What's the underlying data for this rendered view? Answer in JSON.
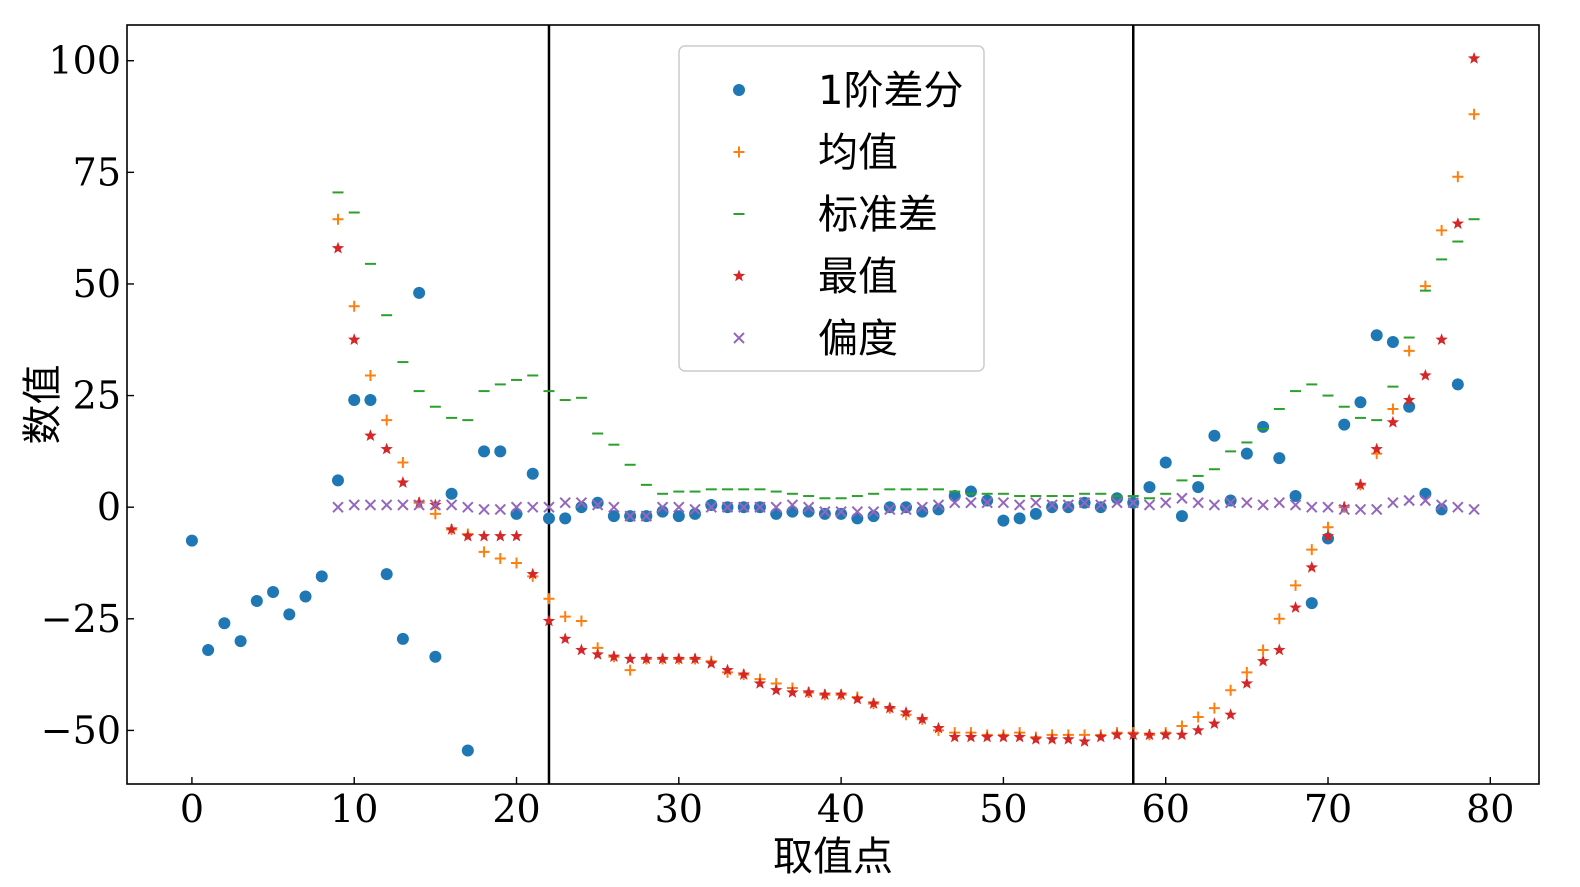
{
  "chart_data": {
    "type": "scatter",
    "xlabel": "取值点",
    "ylabel": "数值",
    "xlim": [
      -4,
      83
    ],
    "ylim": [
      -62,
      108
    ],
    "x_ticks": [
      0,
      10,
      20,
      30,
      40,
      50,
      60,
      70,
      80
    ],
    "y_ticks": [
      -50,
      -25,
      0,
      25,
      50,
      75,
      100
    ],
    "x_tick_labels": [
      "0",
      "10",
      "20",
      "30",
      "40",
      "50",
      "60",
      "70",
      "80"
    ],
    "y_tick_labels": [
      "−50",
      "−25",
      "0",
      "25",
      "50",
      "75",
      "100"
    ],
    "vertical_lines": [
      22,
      58
    ],
    "grid": false,
    "legend_position": "top-center",
    "series": [
      {
        "name": "1阶差分",
        "marker": "circle",
        "color": "#1f77b4",
        "x": [
          0,
          1,
          2,
          3,
          4,
          5,
          6,
          7,
          8,
          9,
          10,
          11,
          12,
          13,
          14,
          15,
          16,
          17,
          18,
          19,
          20,
          21,
          22,
          23,
          24,
          25,
          26,
          27,
          28,
          29,
          30,
          31,
          32,
          33,
          34,
          35,
          36,
          37,
          38,
          39,
          40,
          41,
          42,
          43,
          44,
          45,
          46,
          47,
          48,
          49,
          50,
          51,
          52,
          53,
          54,
          55,
          56,
          57,
          58,
          59,
          60,
          61,
          62,
          63,
          64,
          65,
          66,
          67,
          68,
          69,
          70,
          71,
          72,
          73,
          74,
          75,
          76,
          77,
          78
        ],
        "y": [
          -7.5,
          -32,
          -26,
          -30,
          -21,
          -19,
          -24,
          -20,
          -15.5,
          6,
          24,
          24,
          -15,
          -29.5,
          48,
          -33.5,
          3,
          -54.5,
          12.5,
          12.5,
          -1.5,
          7.5,
          -2.5,
          -2.5,
          0,
          1,
          -2,
          -2,
          -2,
          -1,
          -2,
          -1.5,
          0.5,
          0,
          0,
          0,
          -1.5,
          -1,
          -1,
          -1.5,
          -1.5,
          -2.5,
          -2,
          0,
          0,
          -1,
          -0.5,
          2.5,
          3.5,
          1.5,
          -3,
          -2.5,
          -1.5,
          0,
          0,
          1,
          0,
          2,
          1,
          4.5,
          10,
          -2,
          4.5,
          16,
          1.5,
          12,
          18,
          11,
          2.5,
          -21.5,
          -7,
          18.5,
          23.5,
          38.5,
          37,
          22.5,
          3,
          -0.5,
          27.5
        ]
      },
      {
        "name": "均值",
        "marker": "plus",
        "color": "#ff7f0e",
        "x": [
          9,
          10,
          11,
          12,
          13,
          14,
          15,
          16,
          17,
          18,
          19,
          20,
          21,
          22,
          23,
          24,
          25,
          26,
          27,
          28,
          29,
          30,
          31,
          32,
          33,
          34,
          35,
          36,
          37,
          38,
          39,
          40,
          41,
          42,
          43,
          44,
          45,
          46,
          47,
          48,
          49,
          50,
          51,
          52,
          53,
          54,
          55,
          56,
          57,
          58,
          59,
          60,
          61,
          62,
          63,
          64,
          65,
          66,
          67,
          68,
          69,
          70,
          71,
          72,
          73,
          74,
          75,
          76,
          77,
          78,
          79
        ],
        "y": [
          64.5,
          45,
          29.5,
          19.5,
          10,
          1,
          -1.5,
          -5,
          -6,
          -10,
          -11.5,
          -12.5,
          -15.5,
          -20.5,
          -24.5,
          -25.5,
          -31.5,
          -33.5,
          -36.5,
          -34,
          -34,
          -34,
          -34,
          -34.5,
          -37,
          -37.5,
          -38.5,
          -39.5,
          -40.5,
          -41.5,
          -42,
          -42,
          -42.5,
          -44,
          -45,
          -46.5,
          -47.5,
          -50,
          -50.5,
          -50.5,
          -51,
          -51,
          -50.5,
          -51.5,
          -51,
          -51,
          -51,
          -51,
          -50.5,
          -50.5,
          -51,
          -50.5,
          -49,
          -47,
          -45,
          -41,
          -37,
          -32,
          -25,
          -17.5,
          -9.5,
          -4.5,
          0,
          5,
          12,
          22,
          35,
          49.5,
          62,
          74,
          88
        ]
      },
      {
        "name": "标准差",
        "marker": "hline",
        "color": "#2ca02c",
        "x": [
          9,
          10,
          11,
          12,
          13,
          14,
          15,
          16,
          17,
          18,
          19,
          20,
          21,
          22,
          23,
          24,
          25,
          26,
          27,
          28,
          29,
          30,
          31,
          32,
          33,
          34,
          35,
          36,
          37,
          38,
          39,
          40,
          41,
          42,
          43,
          44,
          45,
          46,
          47,
          48,
          49,
          50,
          51,
          52,
          53,
          54,
          55,
          56,
          57,
          58,
          59,
          60,
          61,
          62,
          63,
          64,
          65,
          66,
          67,
          68,
          69,
          70,
          71,
          72,
          73,
          74,
          75,
          76,
          77,
          78,
          79
        ],
        "y": [
          70.5,
          66,
          54.5,
          43,
          32.5,
          26,
          22.5,
          20,
          19.5,
          26,
          27.5,
          28.5,
          29.5,
          26,
          24,
          24.5,
          16.5,
          14,
          9.5,
          5,
          3,
          3.5,
          3.5,
          4,
          4,
          4,
          4,
          3.5,
          3,
          2.5,
          2,
          2,
          2.5,
          3,
          4,
          4,
          4,
          4,
          3.5,
          3,
          3,
          3,
          2.5,
          2.5,
          2.5,
          2.5,
          3,
          3,
          2.5,
          2.5,
          2,
          3,
          6,
          7,
          8.5,
          12.5,
          14.5,
          17.5,
          22,
          26,
          27.5,
          25,
          22.5,
          20,
          19.5,
          27,
          38,
          48.5,
          55.5,
          59.5,
          64.5
        ]
      },
      {
        "name": "最值",
        "marker": "star",
        "color": "#d62728",
        "x": [
          9,
          10,
          11,
          12,
          13,
          14,
          15,
          16,
          17,
          18,
          19,
          20,
          21,
          22,
          23,
          24,
          25,
          26,
          27,
          28,
          29,
          30,
          31,
          32,
          33,
          34,
          35,
          36,
          37,
          38,
          39,
          40,
          41,
          42,
          43,
          44,
          45,
          46,
          47,
          48,
          49,
          50,
          51,
          52,
          53,
          54,
          55,
          56,
          57,
          58,
          59,
          60,
          61,
          62,
          63,
          64,
          65,
          66,
          67,
          68,
          69,
          70,
          71,
          72,
          73,
          74,
          75,
          76,
          77,
          78,
          79
        ],
        "y": [
          58,
          37.5,
          16,
          13,
          5.5,
          1,
          0.5,
          -5,
          -6.5,
          -6.5,
          -6.5,
          -6.5,
          -15,
          -25.5,
          -29.5,
          -32,
          -33,
          -33.5,
          -34,
          -34,
          -34,
          -34,
          -34,
          -35,
          -36.5,
          -37.5,
          -39.5,
          -41,
          -41.5,
          -41.5,
          -42,
          -42,
          -43,
          -44,
          -45,
          -46,
          -47.5,
          -49.5,
          -51.5,
          -51.5,
          -51.5,
          -51.5,
          -51.5,
          -52,
          -52,
          -52,
          -52.5,
          -51.5,
          -51,
          -51,
          -51,
          -51,
          -51,
          -50,
          -48.5,
          -46.5,
          -39.5,
          -34.5,
          -32,
          -22.5,
          -13.5,
          -6.5,
          0,
          5,
          13,
          19,
          24,
          29.5,
          37.5,
          63.5,
          100.5
        ]
      },
      {
        "name": "偏度",
        "marker": "x",
        "color": "#9467bd",
        "x": [
          9,
          10,
          11,
          12,
          13,
          14,
          15,
          16,
          17,
          18,
          19,
          20,
          21,
          22,
          23,
          24,
          25,
          26,
          27,
          28,
          29,
          30,
          31,
          32,
          33,
          34,
          35,
          36,
          37,
          38,
          39,
          40,
          41,
          42,
          43,
          44,
          45,
          46,
          47,
          48,
          49,
          50,
          51,
          52,
          53,
          54,
          55,
          56,
          57,
          58,
          59,
          60,
          61,
          62,
          63,
          64,
          65,
          66,
          67,
          68,
          69,
          70,
          71,
          72,
          73,
          74,
          75,
          76,
          77,
          78,
          79
        ],
        "y": [
          0,
          0.5,
          0.5,
          0.5,
          0.5,
          0.5,
          0.5,
          0.5,
          0,
          -0.5,
          -0.5,
          0,
          0,
          0,
          1,
          1,
          0.5,
          0,
          -2,
          -2,
          0,
          0,
          -0.5,
          0,
          0,
          0,
          0,
          0,
          0.5,
          0,
          -1,
          -1,
          -1,
          -1,
          -0.5,
          -0.5,
          0,
          0.5,
          1,
          1,
          1,
          1,
          0.5,
          1,
          0.5,
          0.5,
          1,
          0.5,
          1,
          1,
          0.5,
          1,
          2,
          1,
          0.5,
          1,
          1,
          0.5,
          1,
          0.5,
          0,
          0,
          -0.5,
          -0.5,
          -0.5,
          1,
          1.5,
          1.5,
          0.5,
          0,
          -0.5
        ]
      }
    ]
  }
}
